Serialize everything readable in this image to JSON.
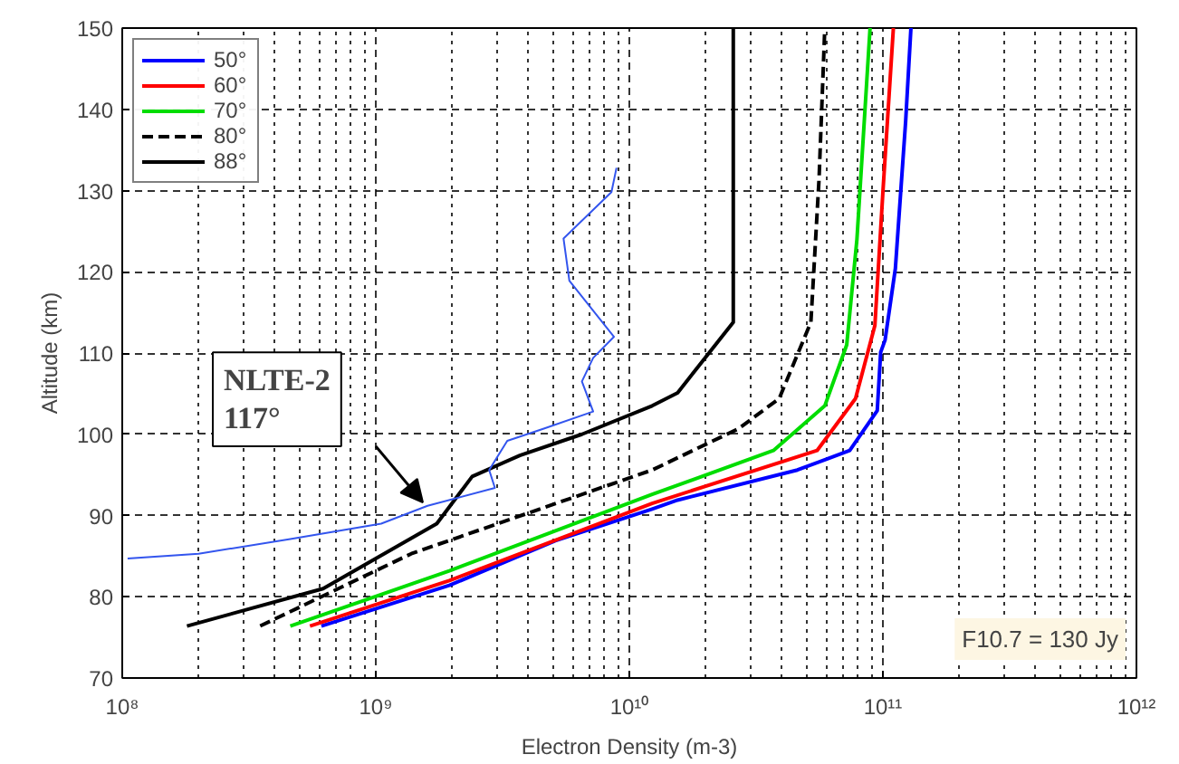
{
  "chart_data": {
    "type": "line",
    "xlabel": "Electron Density (m-3)",
    "ylabel": "Altitude (km)",
    "log": "x",
    "xlim": [
      100000000.0,
      1000000000000.0
    ],
    "xticks": [
      {
        "value": 100000000.0,
        "label": "10⁸"
      },
      {
        "value": 1000000000.0,
        "label": "10⁹"
      },
      {
        "value": 10000000000.0,
        "label": "10¹⁰"
      },
      {
        "value": 100000000000.0,
        "label": "10¹¹"
      },
      {
        "value": 1000000000000.0,
        "label": "10¹²"
      }
    ],
    "ylim": [
      70,
      150
    ],
    "yticks": [
      70,
      80,
      90,
      100,
      110,
      120,
      130,
      140,
      150
    ],
    "grid": true,
    "legend": "top left",
    "line_style": "solid",
    "series": [
      {
        "name": "50°",
        "color": "#0000ff",
        "x": [
          610000000.0,
          1950000000.0,
          5100000000.0,
          12300000000.0,
          15500000000.0,
          46000000000.0,
          74000000000.0,
          95000000000.0,
          98000000000.0,
          102000000000.0,
          112000000000.0,
          123000000000.0,
          129000000000.0
        ],
        "values": [
          76.4,
          81.4,
          86.9,
          90.8,
          91.9,
          95.6,
          98,
          102.9,
          110.1,
          111.6,
          120.4,
          138.6,
          150
        ]
      },
      {
        "name": "60°",
        "color": "#ff0000",
        "x": [
          550000000.0,
          1950000000.0,
          12300000000.0,
          55000000000.0,
          78000000000.0,
          93000000000.0,
          100000000000.0,
          110000000000.0
        ],
        "values": [
          76.4,
          82,
          91.5,
          98,
          104.4,
          113.4,
          129.8,
          150
        ]
      },
      {
        "name": "70°",
        "color": "#00dd00",
        "x": [
          460000000.0,
          1950000000.0,
          12300000000.0,
          37000000000.0,
          59000000000.0,
          72000000000.0,
          79000000000.0,
          89000000000.0
        ],
        "values": [
          76.4,
          83.2,
          92.6,
          98,
          103.5,
          111,
          124,
          150
        ]
      },
      {
        "name": "80°",
        "color": "#000000",
        "line_style": "dashed",
        "x": [
          350000000.0,
          1380000000.0,
          12300000000.0,
          27000000000.0,
          39000000000.0,
          52000000000.0,
          56000000000.0,
          59000000000.0
        ],
        "values": [
          76.4,
          85.3,
          95.6,
          100.7,
          104.4,
          113.8,
          131.4,
          150
        ]
      },
      {
        "name": "88°",
        "color": "#000000",
        "x": [
          180000000.0,
          620000000.0,
          1740000000.0,
          2400000000.0,
          3700000000.0,
          6500000000.0,
          12300000000.0,
          15500000000.0,
          25700000000.0,
          25700000000.0
        ],
        "values": [
          76.4,
          81,
          89,
          94.8,
          97.4,
          100,
          103.5,
          105.1,
          113.8,
          150
        ]
      },
      {
        "color": "#3355ee",
        "x": [
          105000000.0,
          200000000.0,
          460000000.0,
          1050000000.0,
          1600000000.0,
          2950000000.0,
          2800000000.0,
          3300000000.0,
          4600000000.0,
          7200000000.0,
          6500000000.0,
          7200000000.0,
          8700000000.0,
          5800000000.0,
          5500000000.0,
          8500000000.0,
          8900000000.0
        ],
        "values": [
          84.7,
          85.3,
          87.1,
          89,
          91.2,
          93.4,
          95.6,
          99.2,
          100.7,
          102.8,
          106.5,
          109.4,
          112,
          118.9,
          124.1,
          129.8,
          132.8
        ]
      }
    ],
    "annotations": [
      "NLTE-2\n117°",
      "F10.7 = 130 Jy"
    ]
  }
}
